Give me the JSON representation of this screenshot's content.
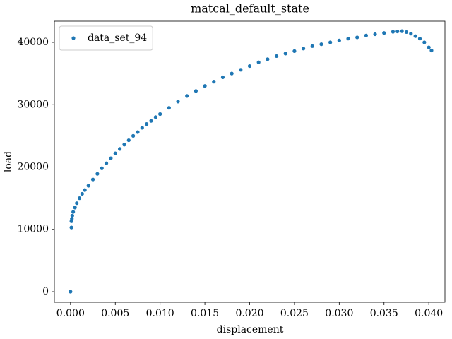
{
  "chart_data": {
    "type": "scatter",
    "title": "matcal_default_state",
    "xlabel": "displacement",
    "ylabel": "load",
    "legend": "upper left",
    "xlim": [
      -0.0018,
      0.0418
    ],
    "ylim": [
      -1700,
      43400
    ],
    "xticks": [
      {
        "value": 0,
        "label": "0.000"
      },
      {
        "value": 0.005,
        "label": "0.005"
      },
      {
        "value": 0.01,
        "label": "0.010"
      },
      {
        "value": 0.015,
        "label": "0.015"
      },
      {
        "value": 0.02,
        "label": "0.020"
      },
      {
        "value": 0.025,
        "label": "0.025"
      },
      {
        "value": 0.03,
        "label": "0.030"
      },
      {
        "value": 0.035,
        "label": "0.035"
      },
      {
        "value": 0.04,
        "label": "0.040"
      }
    ],
    "yticks": [
      0,
      10000,
      20000,
      30000,
      40000
    ],
    "series": [
      {
        "name": "data_set_94",
        "color": "#1f77b4",
        "x": [
          0,
          0.0001,
          0.0001,
          0.00015,
          0.0002,
          0.0003,
          0.0005,
          0.0007,
          0.001,
          0.0013,
          0.0016,
          0.002,
          0.0025,
          0.003,
          0.0035,
          0.004,
          0.0045,
          0.005,
          0.0055,
          0.006,
          0.0065,
          0.007,
          0.0075,
          0.008,
          0.0085,
          0.009,
          0.0095,
          0.01,
          0.011,
          0.012,
          0.013,
          0.014,
          0.015,
          0.016,
          0.017,
          0.018,
          0.019,
          0.02,
          0.021,
          0.022,
          0.023,
          0.024,
          0.025,
          0.026,
          0.027,
          0.028,
          0.029,
          0.03,
          0.031,
          0.032,
          0.033,
          0.034,
          0.035,
          0.036,
          0.0365,
          0.037,
          0.0375,
          0.038,
          0.0385,
          0.039,
          0.0395,
          0.04,
          0.0403
        ],
        "values": [
          0,
          10300,
          11300,
          11700,
          12200,
          12800,
          13500,
          14200,
          15000,
          15700,
          16300,
          17000,
          18000,
          18900,
          19800,
          20600,
          21400,
          22200,
          22900,
          23600,
          24300,
          25000,
          25600,
          26300,
          26900,
          27400,
          28000,
          28500,
          29500,
          30500,
          31400,
          32200,
          33000,
          33700,
          34400,
          35000,
          35600,
          36200,
          36800,
          37300,
          37800,
          38200,
          38600,
          39000,
          39400,
          39700,
          40000,
          40300,
          40600,
          40800,
          41100,
          41300,
          41500,
          41700,
          41750,
          41800,
          41650,
          41400,
          41000,
          40600,
          40000,
          39200,
          38700
        ]
      }
    ]
  }
}
